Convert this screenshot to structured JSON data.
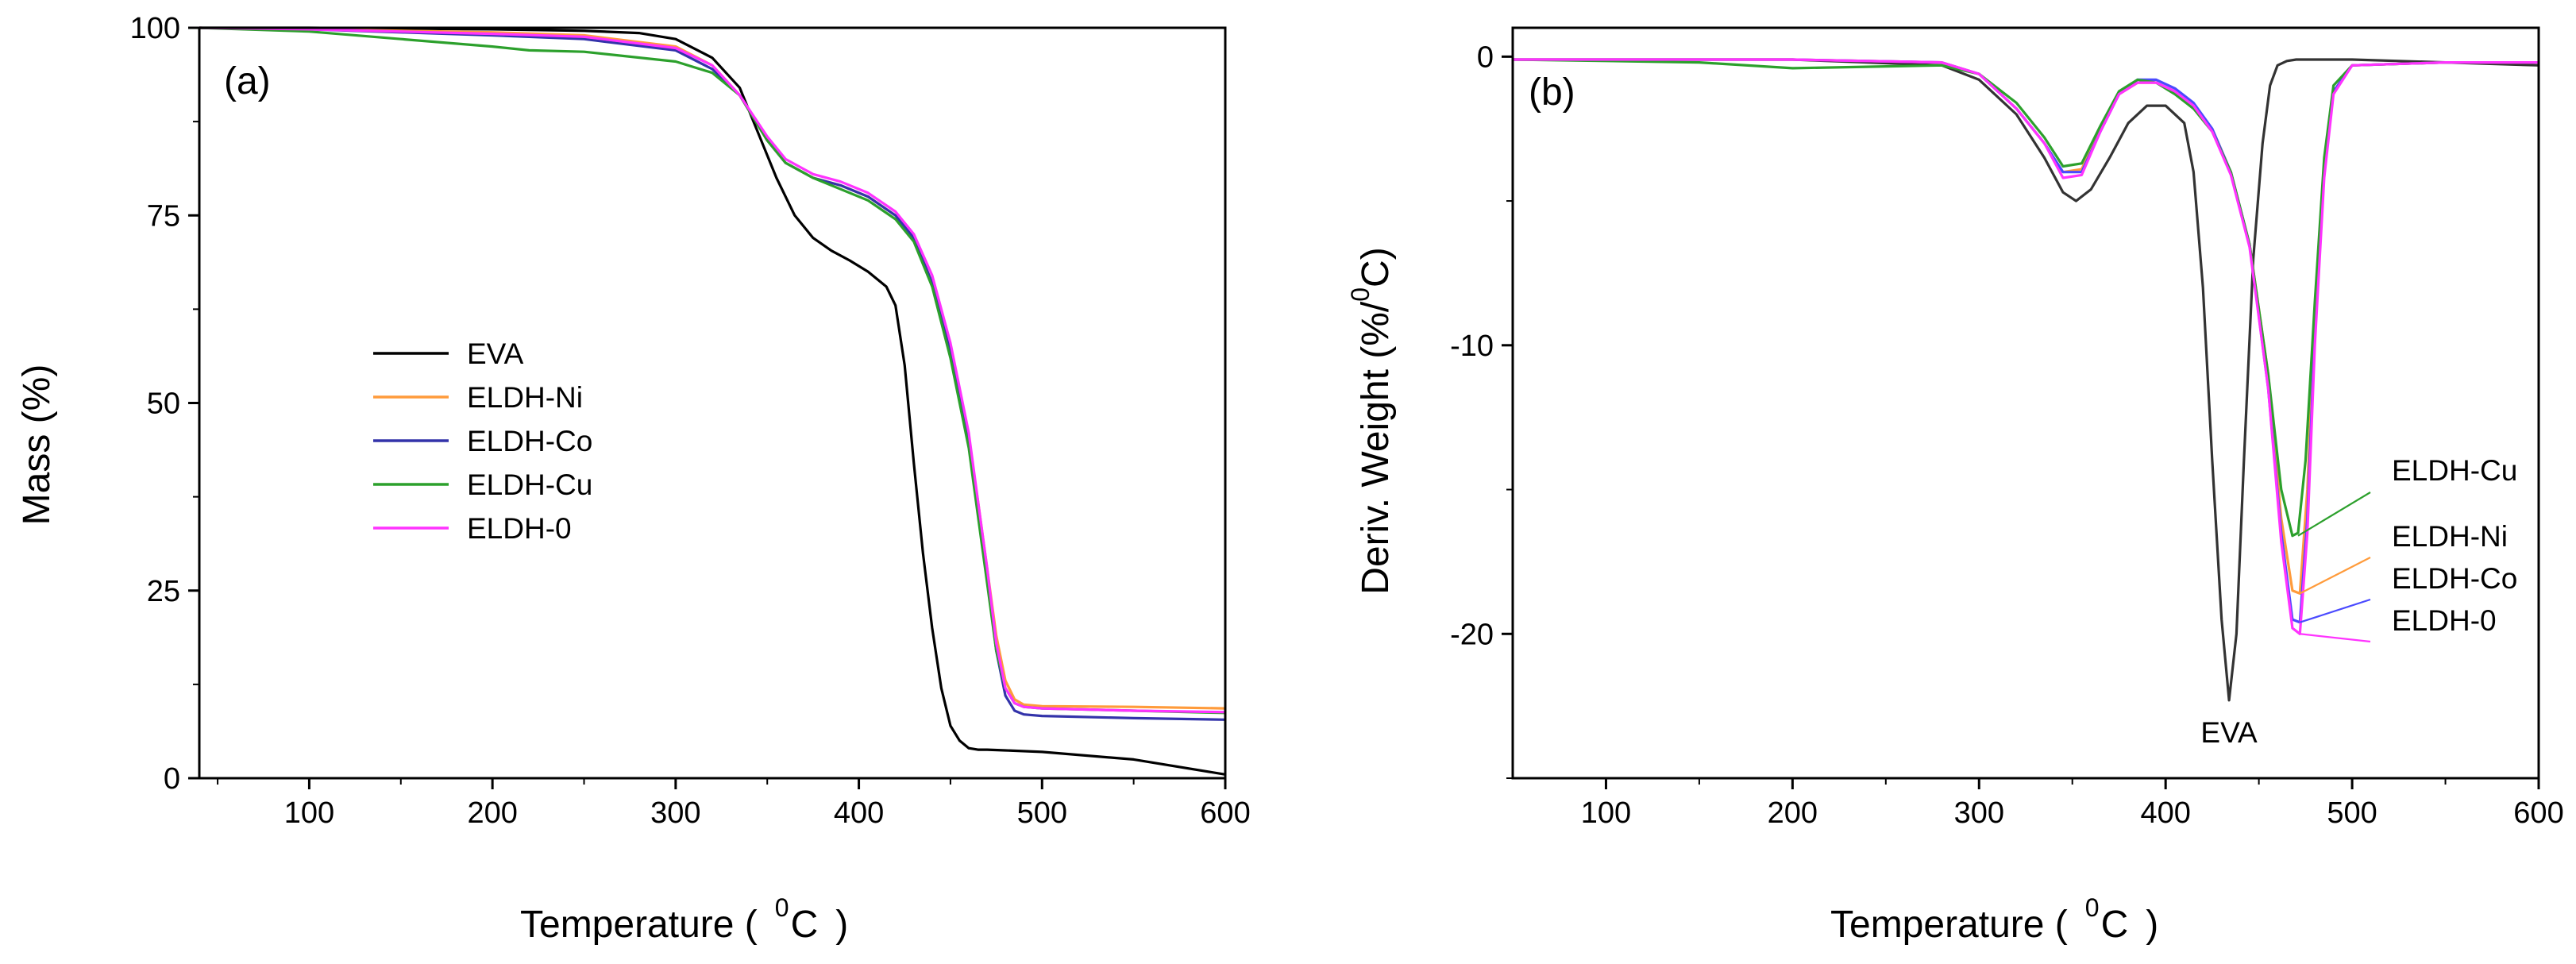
{
  "chart_data": [
    {
      "type": "line",
      "panel_label": "(a)",
      "xlabel": "Temperature ( 0C )",
      "xlabel_main": "Temperature (",
      "xlabel_sup": "0",
      "xlabel_unit": "C",
      "xlabel_close": ")",
      "ylabel": "Mass (%)",
      "xlim": [
        40,
        600
      ],
      "ylim": [
        0,
        100
      ],
      "xticks": [
        "100",
        "200",
        "300",
        "400",
        "500",
        "600"
      ],
      "yticks": [
        "0",
        "25",
        "50",
        "75",
        "100"
      ],
      "legend_position": "center-left",
      "series": [
        {
          "name": "EVA",
          "color": "#000000",
          "x": [
            40,
            100,
            200,
            250,
            280,
            300,
            320,
            335,
            345,
            355,
            365,
            375,
            385,
            395,
            405,
            415,
            420,
            425,
            430,
            435,
            440,
            445,
            450,
            455,
            460,
            465,
            470,
            480,
            500,
            550,
            600
          ],
          "y": [
            100,
            100,
            99.8,
            99.6,
            99.3,
            98.5,
            96,
            92,
            86,
            80,
            75,
            72,
            70.3,
            69,
            67.5,
            65.5,
            63,
            55,
            42,
            30,
            20,
            12,
            7,
            5,
            4,
            3.8,
            3.8,
            3.7,
            3.5,
            2.5,
            0.5
          ]
        },
        {
          "name": "ELDH-Ni",
          "color": "#ff9b3b",
          "x": [
            40,
            100,
            200,
            250,
            300,
            320,
            335,
            350,
            360,
            375,
            390,
            405,
            420,
            430,
            440,
            450,
            460,
            465,
            470,
            475,
            480,
            485,
            490,
            500,
            550,
            600
          ],
          "y": [
            100,
            99.8,
            99.4,
            99,
            97.5,
            95,
            91,
            85,
            82,
            80,
            79,
            77.5,
            75,
            72,
            66,
            57,
            45,
            37,
            28,
            19,
            13,
            10.5,
            9.8,
            9.6,
            9.5,
            9.3
          ]
        },
        {
          "name": "ELDH-Co",
          "color": "#3333aa",
          "x": [
            40,
            100,
            200,
            250,
            300,
            320,
            335,
            350,
            360,
            375,
            390,
            405,
            420,
            430,
            440,
            450,
            460,
            465,
            470,
            475,
            480,
            485,
            490,
            500,
            550,
            600
          ],
          "y": [
            100,
            99.8,
            99,
            98.5,
            97,
            94.5,
            91,
            85,
            82,
            80,
            79,
            77.5,
            75,
            72,
            66,
            57,
            45,
            36,
            27,
            17,
            11,
            9,
            8.5,
            8.3,
            8,
            7.8
          ]
        },
        {
          "name": "ELDH-Cu",
          "color": "#2ca02c",
          "x": [
            40,
            100,
            150,
            200,
            220,
            250,
            300,
            320,
            335,
            350,
            360,
            375,
            390,
            405,
            420,
            430,
            440,
            450,
            460,
            465,
            470,
            475,
            480,
            485,
            490,
            500,
            550,
            600
          ],
          "y": [
            100,
            99.5,
            98.5,
            97.5,
            97,
            96.8,
            95.5,
            94,
            91,
            85,
            82,
            80,
            78.5,
            77,
            74.5,
            71.5,
            65.5,
            56,
            44,
            35,
            26,
            17,
            12,
            10,
            9.5,
            9.3,
            9,
            8.7
          ]
        },
        {
          "name": "ELDH-0",
          "color": "#ff33ff",
          "x": [
            40,
            100,
            200,
            250,
            300,
            320,
            335,
            350,
            360,
            375,
            390,
            405,
            420,
            430,
            440,
            450,
            460,
            465,
            470,
            475,
            480,
            485,
            490,
            500,
            550,
            600
          ],
          "y": [
            100,
            99.8,
            99.2,
            98.8,
            97.3,
            95,
            91,
            85.5,
            82.5,
            80.5,
            79.5,
            78,
            75.5,
            72.5,
            67,
            58,
            46,
            37,
            28,
            18,
            12,
            10,
            9.5,
            9.3,
            9,
            8.8
          ]
        }
      ]
    },
    {
      "type": "line",
      "panel_label": "(b)",
      "xlabel": "Temperature ( 0C )",
      "xlabel_main": "Temperature (",
      "xlabel_sup": "0",
      "xlabel_unit": "C",
      "xlabel_close": ")",
      "ylabel": "Deriv. Weight (%/ 0C)",
      "ylabel_main": "Deriv. Weight (%/",
      "ylabel_sup": "0",
      "ylabel_unit": "C)",
      "xlim": [
        50,
        600
      ],
      "ylim": [
        -25,
        1
      ],
      "xticks": [
        "100",
        "200",
        "300",
        "400",
        "500",
        "600"
      ],
      "yticks": [
        "0",
        "-10",
        "-20"
      ],
      "annotations": [
        "ELDH-Cu",
        "ELDH-Ni",
        "ELDH-Co",
        "ELDH-0",
        "EVA"
      ],
      "series": [
        {
          "name": "EVA",
          "color": "#333333",
          "x": [
            50,
            200,
            280,
            300,
            320,
            335,
            345,
            352,
            360,
            370,
            380,
            390,
            400,
            410,
            415,
            420,
            425,
            430,
            434,
            438,
            442,
            447,
            452,
            456,
            460,
            465,
            470,
            500,
            550,
            600
          ],
          "y": [
            -0.1,
            -0.1,
            -0.3,
            -0.8,
            -2,
            -3.5,
            -4.7,
            -5,
            -4.6,
            -3.5,
            -2.3,
            -1.7,
            -1.7,
            -2.3,
            -4,
            -8,
            -14,
            -19.5,
            -22.3,
            -20,
            -14,
            -7,
            -3,
            -1,
            -0.3,
            -0.15,
            -0.1,
            -0.1,
            -0.2,
            -0.3
          ]
        },
        {
          "name": "ELDH-Ni",
          "color": "#ff9b3b",
          "x": [
            50,
            200,
            280,
            300,
            320,
            335,
            345,
            355,
            365,
            375,
            385,
            395,
            405,
            415,
            425,
            435,
            445,
            455,
            462,
            468,
            472,
            476,
            480,
            485,
            490,
            500,
            550,
            600
          ],
          "y": [
            -0.1,
            -0.1,
            -0.2,
            -0.6,
            -1.8,
            -3,
            -4,
            -3.9,
            -2.5,
            -1.3,
            -0.9,
            -0.9,
            -1.2,
            -1.7,
            -2.5,
            -4,
            -6.5,
            -11,
            -16,
            -18.5,
            -18.6,
            -15,
            -9,
            -4,
            -1.2,
            -0.3,
            -0.2,
            -0.2
          ]
        },
        {
          "name": "ELDH-Co",
          "color": "#4a4aff",
          "x": [
            50,
            200,
            280,
            300,
            320,
            335,
            345,
            355,
            365,
            375,
            385,
            395,
            405,
            415,
            425,
            435,
            445,
            455,
            462,
            468,
            472,
            476,
            480,
            485,
            490,
            500,
            550,
            600
          ],
          "y": [
            -0.1,
            -0.1,
            -0.2,
            -0.6,
            -1.8,
            -3,
            -4,
            -4,
            -2.6,
            -1.3,
            -0.8,
            -0.8,
            -1.1,
            -1.6,
            -2.5,
            -4,
            -6.5,
            -11.5,
            -16.5,
            -19.5,
            -19.6,
            -16,
            -9.5,
            -4,
            -1.2,
            -0.3,
            -0.2,
            -0.2
          ]
        },
        {
          "name": "ELDH-Cu",
          "color": "#2ca02c",
          "x": [
            50,
            150,
            200,
            280,
            300,
            320,
            335,
            345,
            355,
            365,
            375,
            385,
            395,
            405,
            415,
            425,
            435,
            445,
            455,
            462,
            468,
            471,
            475,
            480,
            485,
            490,
            500,
            550,
            600
          ],
          "y": [
            -0.1,
            -0.2,
            -0.4,
            -0.3,
            -0.6,
            -1.6,
            -2.8,
            -3.8,
            -3.7,
            -2.4,
            -1.2,
            -0.8,
            -0.9,
            -1.3,
            -1.8,
            -2.6,
            -4,
            -6.5,
            -11,
            -15,
            -16.6,
            -16.5,
            -14,
            -8.5,
            -3.5,
            -1,
            -0.3,
            -0.2,
            -0.2
          ]
        },
        {
          "name": "ELDH-0",
          "color": "#ff33ff",
          "x": [
            50,
            200,
            280,
            300,
            320,
            335,
            345,
            355,
            365,
            375,
            385,
            395,
            405,
            415,
            425,
            435,
            445,
            455,
            462,
            468,
            472,
            476,
            480,
            485,
            490,
            500,
            550,
            600
          ],
          "y": [
            -0.1,
            -0.1,
            -0.2,
            -0.6,
            -1.8,
            -3,
            -4.2,
            -4.1,
            -2.6,
            -1.3,
            -0.9,
            -0.9,
            -1.2,
            -1.7,
            -2.6,
            -4.1,
            -6.6,
            -11.5,
            -16.8,
            -19.8,
            -20,
            -16.5,
            -10,
            -4.2,
            -1.3,
            -0.3,
            -0.2,
            -0.2
          ]
        }
      ]
    }
  ]
}
